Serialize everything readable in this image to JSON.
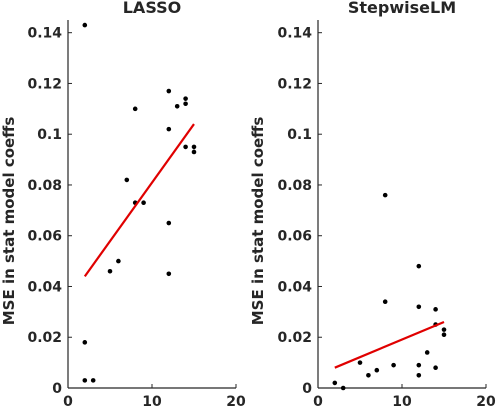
{
  "chart_data": [
    {
      "type": "scatter",
      "title": "LASSO",
      "xlabel": "",
      "ylabel": "MSE in stat model coeffs",
      "xlim": [
        0,
        20
      ],
      "ylim": [
        0,
        0.145
      ],
      "xticks": [
        0,
        10,
        20
      ],
      "xtick_labels": [
        "0",
        "10",
        "20"
      ],
      "yticks": [
        0,
        0.02,
        0.04,
        0.06,
        0.08,
        0.1,
        0.12,
        0.14
      ],
      "ytick_labels": [
        "0",
        "0.02",
        "0.04",
        "0.06",
        "0.08",
        "0.1",
        "0.12",
        "0.14"
      ],
      "grid": false,
      "points": [
        {
          "x": 2,
          "y": 0.143
        },
        {
          "x": 2,
          "y": 0.018
        },
        {
          "x": 2,
          "y": 0.003
        },
        {
          "x": 3,
          "y": 0.003
        },
        {
          "x": 5,
          "y": 0.046
        },
        {
          "x": 6,
          "y": 0.05
        },
        {
          "x": 7,
          "y": 0.082
        },
        {
          "x": 8,
          "y": 0.11
        },
        {
          "x": 8,
          "y": 0.073
        },
        {
          "x": 9,
          "y": 0.073
        },
        {
          "x": 12,
          "y": 0.117
        },
        {
          "x": 12,
          "y": 0.102
        },
        {
          "x": 12,
          "y": 0.065
        },
        {
          "x": 12,
          "y": 0.045
        },
        {
          "x": 13,
          "y": 0.111
        },
        {
          "x": 14,
          "y": 0.114
        },
        {
          "x": 14,
          "y": 0.112
        },
        {
          "x": 14,
          "y": 0.095
        },
        {
          "x": 15,
          "y": 0.095
        },
        {
          "x": 15,
          "y": 0.093
        }
      ],
      "fit_line": {
        "x": [
          2,
          15
        ],
        "y": [
          0.044,
          0.104
        ]
      },
      "point_color": "#000000",
      "line_color": "#e00000"
    },
    {
      "type": "scatter",
      "title": "StepwiseLM",
      "xlabel": "",
      "ylabel": "MSE in stat model coeffs",
      "xlim": [
        0,
        20
      ],
      "ylim": [
        0,
        0.145
      ],
      "xticks": [
        0,
        10,
        20
      ],
      "xtick_labels": [
        "0",
        "10",
        "20"
      ],
      "yticks": [
        0,
        0.02,
        0.04,
        0.06,
        0.08,
        0.1,
        0.12,
        0.14
      ],
      "ytick_labels": [
        "0",
        "0.02",
        "0.04",
        "0.06",
        "0.08",
        "0.1",
        "0.12",
        "0.14"
      ],
      "grid": false,
      "points": [
        {
          "x": 2,
          "y": 0.002
        },
        {
          "x": 3,
          "y": 0.0
        },
        {
          "x": 5,
          "y": 0.01
        },
        {
          "x": 6,
          "y": 0.005
        },
        {
          "x": 7,
          "y": 0.007
        },
        {
          "x": 8,
          "y": 0.076
        },
        {
          "x": 8,
          "y": 0.034
        },
        {
          "x": 9,
          "y": 0.009
        },
        {
          "x": 12,
          "y": 0.048
        },
        {
          "x": 12,
          "y": 0.032
        },
        {
          "x": 12,
          "y": 0.009
        },
        {
          "x": 12,
          "y": 0.005
        },
        {
          "x": 13,
          "y": 0.014
        },
        {
          "x": 14,
          "y": 0.031
        },
        {
          "x": 14,
          "y": 0.025
        },
        {
          "x": 14,
          "y": 0.008
        },
        {
          "x": 15,
          "y": 0.023
        },
        {
          "x": 15,
          "y": 0.021
        }
      ],
      "fit_line": {
        "x": [
          2,
          15
        ],
        "y": [
          0.008,
          0.026
        ]
      },
      "point_color": "#000000",
      "line_color": "#e00000"
    }
  ]
}
